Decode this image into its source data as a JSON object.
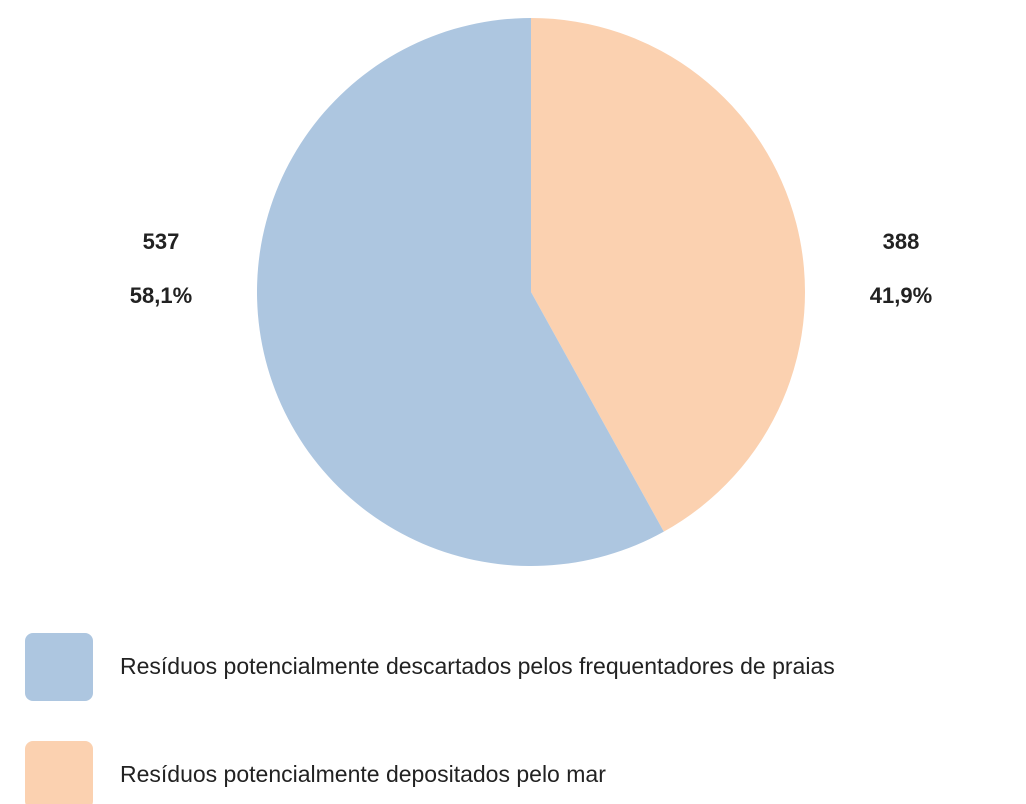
{
  "chart_data": {
    "type": "pie",
    "categories": [
      "Resíduos potencialmente descartados pelos frequentadores de praias",
      "Resíduos potencialmente depositados pelo mar"
    ],
    "values": [
      537,
      388
    ],
    "percent_labels": [
      "58,1%",
      "41,9%"
    ],
    "colors": [
      "#adc6e0",
      "#fbd1b0"
    ]
  }
}
